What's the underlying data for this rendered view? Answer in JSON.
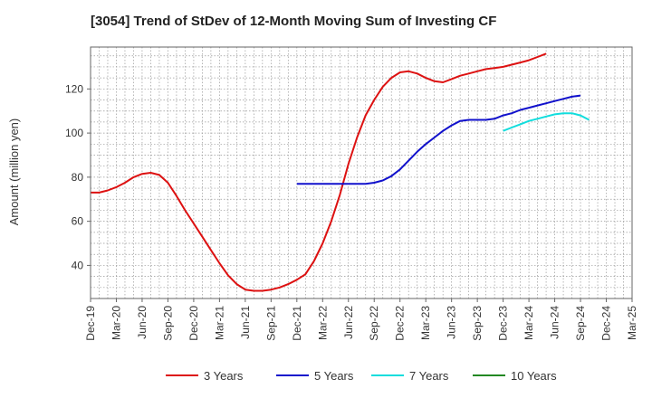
{
  "chart_data": {
    "type": "line",
    "title": "[3054]  Trend of StDev of 12-Month Moving Sum of Investing CF",
    "xlabel": "",
    "ylabel": "Amount (million yen)",
    "ylim": [
      25,
      139
    ],
    "yticks": [
      40,
      60,
      80,
      100,
      120
    ],
    "xticks": [
      "Dec-19",
      "Mar-20",
      "Jun-20",
      "Sep-20",
      "Dec-20",
      "Mar-21",
      "Jun-21",
      "Sep-21",
      "Dec-21",
      "Mar-22",
      "Jun-22",
      "Sep-22",
      "Dec-22",
      "Mar-23",
      "Jun-23",
      "Sep-23",
      "Dec-23",
      "Mar-24",
      "Jun-24",
      "Sep-24",
      "Dec-24",
      "Mar-25"
    ],
    "grid": true,
    "legend_position": "bottom",
    "series": [
      {
        "name": "3 Years",
        "color": "#dd1111",
        "start_index": 0,
        "values": [
          73,
          73,
          74,
          75.5,
          77.5,
          80,
          81.5,
          82,
          81,
          77.5,
          71.5,
          65,
          59,
          53,
          47,
          41,
          35.5,
          31.5,
          29,
          28.5,
          28.5,
          29,
          30,
          31.5,
          33.5,
          36,
          42,
          50,
          60,
          72,
          86,
          98,
          108,
          115,
          121,
          125,
          127.5,
          128,
          127,
          125,
          123.5,
          123,
          124.5,
          126,
          127,
          128,
          129,
          129.5,
          130,
          131,
          132,
          133,
          134.5,
          136
        ]
      },
      {
        "name": "5 Years",
        "color": "#1111cc",
        "start_index": 24,
        "values": [
          77,
          77,
          77,
          77,
          77,
          77,
          77,
          77,
          77,
          77.5,
          78.5,
          80.5,
          83.5,
          87.5,
          91.5,
          95,
          98,
          101,
          103.5,
          105.5,
          106,
          106,
          106,
          106.5,
          108,
          109,
          110.5,
          111.5,
          112.5,
          113.5,
          114.5,
          115.5,
          116.5,
          117
        ]
      },
      {
        "name": "7 Years",
        "color": "#11dddd",
        "start_index": 48,
        "values": [
          101,
          102.5,
          104,
          105.5,
          106.5,
          107.5,
          108.5,
          109,
          109,
          108,
          106
        ]
      },
      {
        "name": "10 Years",
        "color": "#228822",
        "start_index": 0,
        "values": []
      }
    ]
  }
}
